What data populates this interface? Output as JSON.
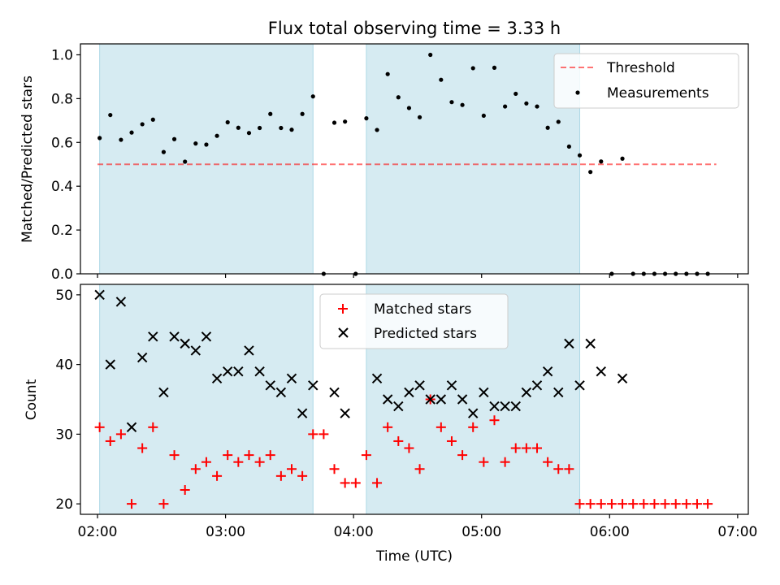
{
  "chart_data": [
    {
      "type": "scatter",
      "title": "Flux total observing time = 3.33 h",
      "xlabel": "",
      "ylabel": "Matched/Predicted stars",
      "xlim": [
        "01:52",
        "07:05"
      ],
      "ylim": [
        0,
        1.05
      ],
      "y_ticks": [
        "0.0",
        "0.2",
        "0.4",
        "0.6",
        "0.8",
        "1.0"
      ],
      "y_tick_values": [
        0,
        0.2,
        0.4,
        0.6,
        0.8,
        1.0
      ],
      "shaded_intervals": [
        [
          "02:01",
          "03:41"
        ],
        [
          "04:06",
          "05:46"
        ]
      ],
      "shade_color": "#add8e6",
      "grid": false,
      "legend_position": "upper right",
      "series": [
        {
          "name": "Threshold",
          "style": "dashed-line",
          "color": "#ff0000",
          "x": [
            "02:00",
            "06:50"
          ],
          "y": [
            0.5,
            0.5
          ]
        },
        {
          "name": "Measurements",
          "style": "dot",
          "color": "#000000",
          "x": [
            "02:01",
            "02:06",
            "02:11",
            "02:16",
            "02:21",
            "02:26",
            "02:31",
            "02:36",
            "02:41",
            "02:46",
            "02:51",
            "02:56",
            "03:01",
            "03:06",
            "03:11",
            "03:16",
            "03:21",
            "03:26",
            "03:31",
            "03:36",
            "03:41",
            "03:46",
            "03:51",
            "03:56",
            "04:01",
            "04:06",
            "04:11",
            "04:16",
            "04:21",
            "04:26",
            "04:31",
            "04:36",
            "04:41",
            "04:46",
            "04:51",
            "04:56",
            "05:01",
            "05:06",
            "05:11",
            "05:16",
            "05:21",
            "05:26",
            "05:31",
            "05:36",
            "05:41",
            "05:46",
            "05:51",
            "05:56",
            "06:01",
            "06:06",
            "06:11",
            "06:16",
            "06:21",
            "06:26",
            "06:31",
            "06:36",
            "06:41",
            "06:46"
          ],
          "y": [
            0.62,
            0.725,
            0.612,
            0.645,
            0.683,
            0.704,
            0.556,
            0.615,
            0.512,
            0.595,
            0.59,
            0.63,
            0.692,
            0.667,
            0.643,
            0.666,
            0.73,
            0.666,
            0.658,
            0.73,
            0.81,
            0.0,
            0.69,
            0.695,
            0.0,
            0.71,
            0.657,
            0.912,
            0.806,
            0.757,
            0.715,
            1.0,
            0.886,
            0.784,
            0.771,
            0.939,
            0.722,
            0.941,
            0.764,
            0.822,
            0.778,
            0.764,
            0.667,
            0.694,
            0.581,
            0.541,
            0.465,
            0.513,
            0.0,
            0.526,
            0.0,
            0.0,
            0.0,
            0.0,
            0.0,
            0.0,
            0.0,
            0.0
          ]
        }
      ]
    },
    {
      "type": "scatter",
      "title": "",
      "xlabel": "Time (UTC)",
      "ylabel": "Count",
      "xlim": [
        "01:52",
        "07:05"
      ],
      "ylim": [
        18.5,
        51.5
      ],
      "x_ticks": [
        "02:00",
        "03:00",
        "04:00",
        "05:00",
        "06:00",
        "07:00"
      ],
      "x_tick_values": [
        "02:00",
        "03:00",
        "04:00",
        "05:00",
        "06:00",
        "07:00"
      ],
      "y_ticks": [
        "20",
        "30",
        "40",
        "50"
      ],
      "y_tick_values": [
        20,
        30,
        40,
        50
      ],
      "shaded_intervals": [
        [
          "02:01",
          "03:41"
        ],
        [
          "04:06",
          "05:46"
        ]
      ],
      "shade_color": "#add8e6",
      "grid": false,
      "legend_position": "upper center",
      "series": [
        {
          "name": "Matched stars",
          "style": "plus",
          "color": "#ff0000",
          "x": [
            "02:01",
            "02:06",
            "02:11",
            "02:16",
            "02:21",
            "02:26",
            "02:31",
            "02:36",
            "02:41",
            "02:46",
            "02:51",
            "02:56",
            "03:01",
            "03:06",
            "03:11",
            "03:16",
            "03:21",
            "03:26",
            "03:31",
            "03:36",
            "03:41",
            "03:46",
            "03:51",
            "03:56",
            "04:01",
            "04:06",
            "04:11",
            "04:16",
            "04:21",
            "04:26",
            "04:31",
            "04:36",
            "04:41",
            "04:46",
            "04:51",
            "04:56",
            "05:01",
            "05:06",
            "05:11",
            "05:16",
            "05:21",
            "05:26",
            "05:31",
            "05:36",
            "05:41",
            "05:46",
            "05:51",
            "05:56",
            "06:01",
            "06:06",
            "06:11",
            "06:16",
            "06:21",
            "06:26",
            "06:31",
            "06:36",
            "06:41",
            "06:46"
          ],
          "y": [
            31,
            29,
            30,
            20,
            28,
            31,
            20,
            27,
            22,
            25,
            26,
            24,
            27,
            26,
            27,
            26,
            27,
            24,
            25,
            24,
            30,
            30,
            25,
            23,
            23,
            27,
            23,
            31,
            29,
            28,
            25,
            35,
            31,
            29,
            27,
            31,
            26,
            32,
            26,
            28,
            28,
            28,
            26,
            25,
            25,
            20,
            20,
            20,
            20,
            20,
            20,
            20,
            20,
            20,
            20,
            20,
            20,
            20
          ]
        },
        {
          "name": "Predicted stars",
          "style": "x",
          "color": "#000000",
          "x": [
            "02:01",
            "02:06",
            "02:11",
            "02:16",
            "02:21",
            "02:26",
            "02:31",
            "02:36",
            "02:41",
            "02:46",
            "02:51",
            "02:56",
            "03:01",
            "03:06",
            "03:11",
            "03:16",
            "03:21",
            "03:26",
            "03:31",
            "03:36",
            "03:41",
            "03:51",
            "03:56",
            "04:11",
            "04:16",
            "04:21",
            "04:26",
            "04:31",
            "04:36",
            "04:41",
            "04:46",
            "04:51",
            "04:56",
            "05:01",
            "05:06",
            "05:11",
            "05:16",
            "05:21",
            "05:26",
            "05:31",
            "05:36",
            "05:41",
            "05:46",
            "05:51",
            "05:56",
            "06:06"
          ],
          "y": [
            50,
            40,
            49,
            31,
            41,
            44,
            36,
            44,
            43,
            42,
            44,
            38,
            39,
            39,
            42,
            39,
            37,
            36,
            38,
            33,
            37,
            36,
            33,
            38,
            35,
            34,
            36,
            37,
            35,
            35,
            37,
            35,
            33,
            36,
            34,
            34,
            34,
            36,
            37,
            39,
            36,
            43,
            37,
            43,
            39,
            38
          ]
        }
      ]
    }
  ]
}
